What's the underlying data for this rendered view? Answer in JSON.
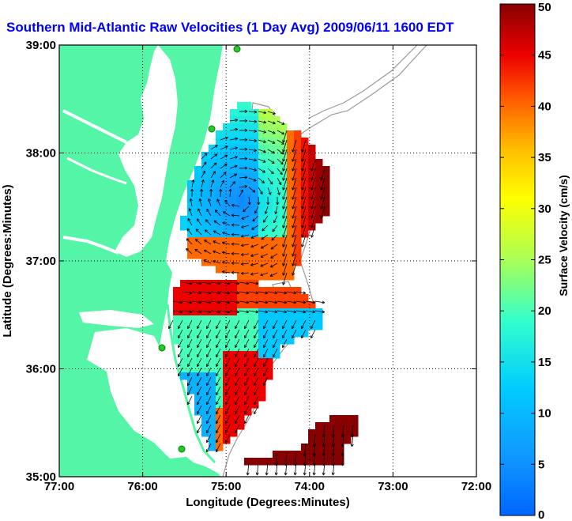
{
  "title": "Southern Mid-Atlantic Raw Velocities (1 Day Avg) 2009/06/11 1600 EDT",
  "map": {
    "xlabel": "Longitude (Degrees:Minutes)",
    "ylabel": "Latitude (Degrees:Minutes)",
    "lon_ticks": [
      "77:00",
      "76:00",
      "75:00",
      "74:00",
      "73:00",
      "72:00"
    ],
    "lat_ticks": [
      "39:00",
      "38:00",
      "37:00",
      "36:00",
      "35:00"
    ],
    "lon_range": [
      -77,
      -72
    ],
    "lat_range": [
      35,
      39
    ],
    "grid": true,
    "land_color": "#55f5a8",
    "ocean_color": "#ffffff",
    "bathymetry_color": "#999999",
    "station_color": "#22cc22",
    "arrow_color": "#000000"
  },
  "colorbar": {
    "label": "Surface Velocity (cm/s)",
    "ticks": [
      "50",
      "45",
      "40",
      "35",
      "30",
      "25",
      "20",
      "15",
      "10",
      "5",
      "0"
    ],
    "range": [
      0,
      50
    ],
    "colormap": "jet"
  }
}
